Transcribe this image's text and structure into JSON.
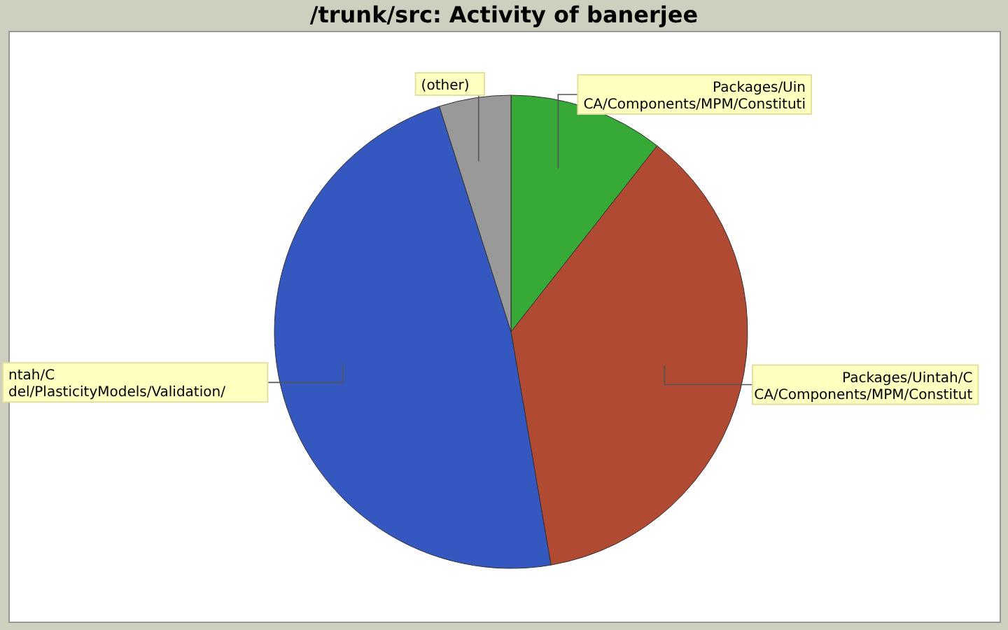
{
  "chart_data": {
    "type": "pie",
    "title": "/trunk/src: Activity of banerjee",
    "categories": [
      "Packages/Uin\nCA/Components/MPM/Constituti",
      "Packages/Uintah/C\nCA/Components/MPM/Constitut",
      "ntah/C\ndel/PlasticityModels/Validation/",
      "(other)"
    ],
    "values": [
      10.6,
      36.7,
      47.8,
      4.9
    ],
    "colors": [
      "#36a936",
      "#b04a33",
      "#3558c0",
      "#999999"
    ]
  }
}
